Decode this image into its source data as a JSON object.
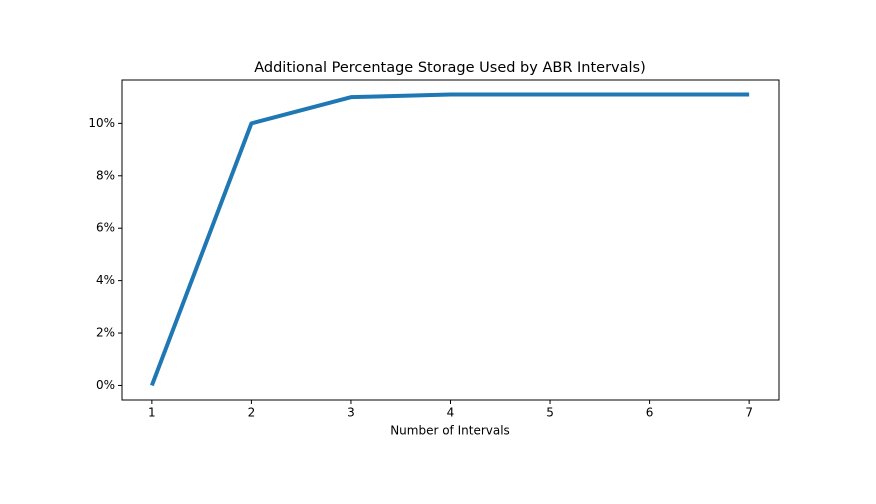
{
  "chart_data": {
    "type": "line",
    "title": "Additional Percentage Storage Used by ABR Intervals)",
    "xlabel": "Number of Intervals",
    "x": [
      1,
      2,
      3,
      4,
      5,
      6,
      7
    ],
    "series": [
      {
        "color": "#1f77b4",
        "values": [
          0,
          10,
          11,
          11.1,
          11.1,
          11.1,
          11.1
        ]
      }
    ],
    "xlim": [
      0.7,
      7.3
    ],
    "xticks": [
      1,
      2,
      3,
      4,
      5,
      6,
      7
    ],
    "ylim": [
      -0.555,
      11.655
    ],
    "yticks": [
      {
        "value": 0,
        "label": "0%"
      },
      {
        "value": 2,
        "label": "2%"
      },
      {
        "value": 4,
        "label": "4%"
      },
      {
        "value": 6,
        "label": "6%"
      },
      {
        "value": 8,
        "label": "8%"
      },
      {
        "value": 10,
        "label": "10%"
      }
    ],
    "grid": false
  }
}
